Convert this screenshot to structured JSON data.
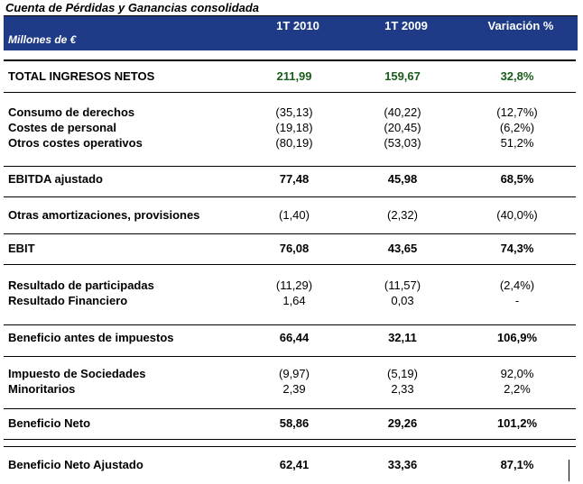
{
  "caption": "Cuenta de Pérdidas y Ganancias consolidada",
  "header": {
    "units": "Millones de €",
    "columns": [
      "1T 2010",
      "1T 2009",
      "Variación %"
    ]
  },
  "rows": [
    {
      "label": "TOTAL INGRESOS NETOS",
      "v1": "211,99",
      "v2": "159,67",
      "v3": "32,8%"
    },
    {
      "label": "Consumo de derechos",
      "v1": "(35,13)",
      "v2": "(40,22)",
      "v3": "(12,7%)"
    },
    {
      "label": "Costes de personal",
      "v1": "(19,18)",
      "v2": "(20,45)",
      "v3": "(6,2%)"
    },
    {
      "label": "Otros costes operativos",
      "v1": "(80,19)",
      "v2": "(53,03)",
      "v3": "51,2%"
    },
    {
      "label": "EBITDA ajustado",
      "v1": "77,48",
      "v2": "45,98",
      "v3": "68,5%"
    },
    {
      "label": "Otras amortizaciones, provisiones",
      "v1": "(1,40)",
      "v2": "(2,32)",
      "v3": "(40,0%)"
    },
    {
      "label": "EBIT",
      "v1": "76,08",
      "v2": "43,65",
      "v3": "74,3%"
    },
    {
      "label": "Resultado de participadas",
      "v1": "(11,29)",
      "v2": "(11,57)",
      "v3": "(2,4%)"
    },
    {
      "label": "Resultado Financiero",
      "v1": "1,64",
      "v2": "0,03",
      "v3": "-"
    },
    {
      "label": "Beneficio antes de impuestos",
      "v1": "66,44",
      "v2": "32,11",
      "v3": "106,9%"
    },
    {
      "label": "Impuesto de Sociedades",
      "v1": "(9,97)",
      "v2": "(5,19)",
      "v3": "92,0%"
    },
    {
      "label": "Minoritarios",
      "v1": "2,39",
      "v2": "2,33",
      "v3": "2,2%"
    },
    {
      "label": "Beneficio Neto",
      "v1": "58,86",
      "v2": "29,26",
      "v3": "101,2%"
    },
    {
      "label": "Beneficio Neto Ajustado",
      "v1": "62,41",
      "v2": "33,36",
      "v3": "87,1%"
    }
  ],
  "colors": {
    "header_bg": "#1f3a86",
    "total_values": "#1a5c1a"
  }
}
